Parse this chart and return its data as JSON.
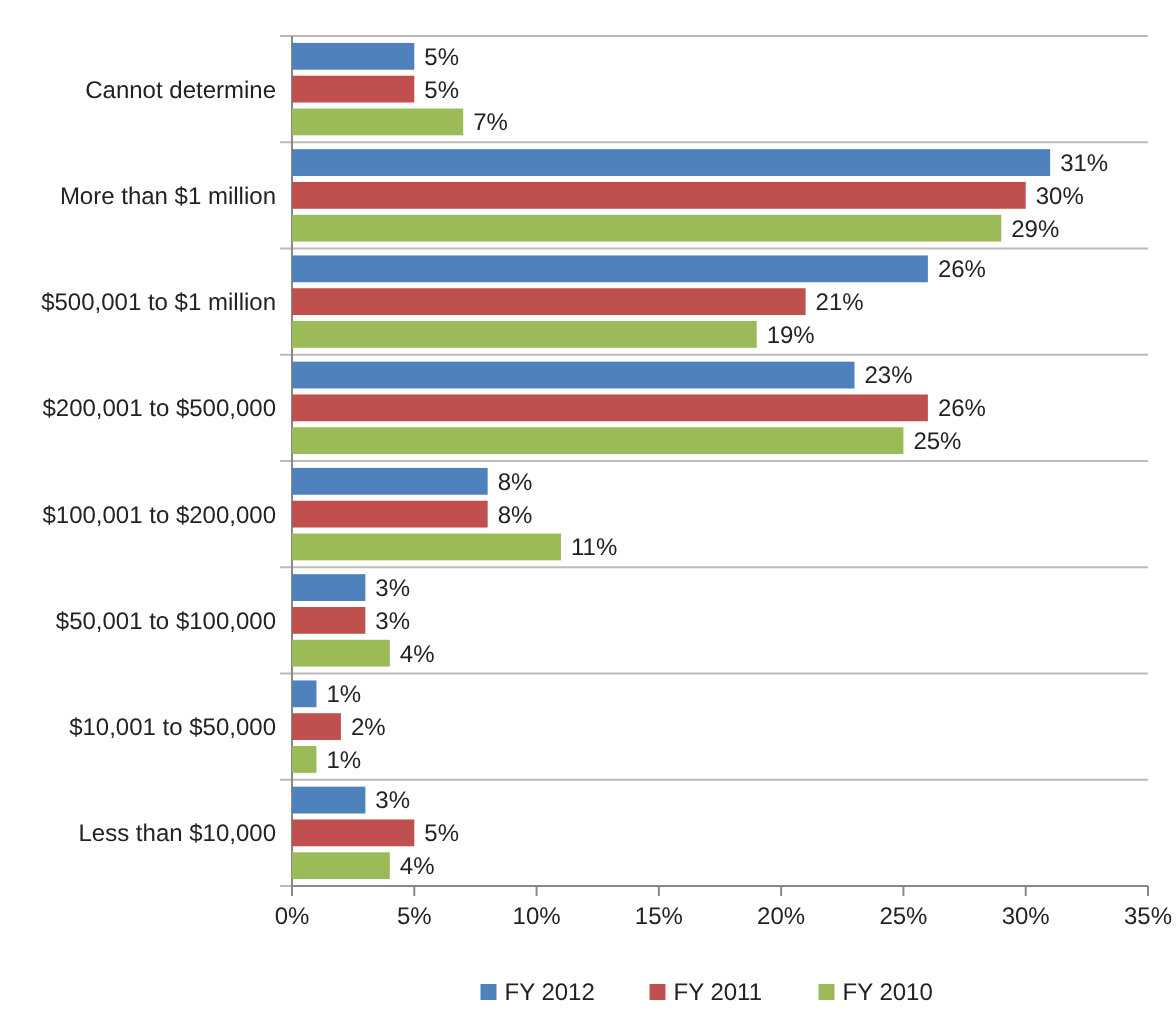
{
  "chart_data": {
    "type": "bar",
    "orientation": "horizontal",
    "categories": [
      "Cannot determine",
      "More than $1 million",
      "$500,001 to $1 million",
      "$200,001 to $500,000",
      "$100,001 to $200,000",
      "$50,001 to $100,000",
      "$10,001 to $50,000",
      "Less than $10,000"
    ],
    "series": [
      {
        "name": "FY 2012",
        "color": "#4f81bd",
        "values": [
          5,
          31,
          26,
          23,
          8,
          3,
          1,
          3
        ],
        "value_labels": [
          "5%",
          "31%",
          "26%",
          "23%",
          "8%",
          "3%",
          "1%",
          "3%"
        ]
      },
      {
        "name": "FY 2011",
        "color": "#c0504d",
        "values": [
          5,
          30,
          21,
          26,
          8,
          3,
          2,
          5
        ],
        "value_labels": [
          "5%",
          "30%",
          "21%",
          "26%",
          "8%",
          "3%",
          "2%",
          "5%"
        ]
      },
      {
        "name": "FY 2010",
        "color": "#9bbb59",
        "values": [
          7,
          29,
          19,
          25,
          11,
          4,
          1,
          4
        ],
        "value_labels": [
          "7%",
          "29%",
          "19%",
          "25%",
          "11%",
          "4%",
          "1%",
          "4%"
        ]
      }
    ],
    "xlim": [
      0,
      35
    ],
    "xticks": [
      {
        "value": 0,
        "label": "0%"
      },
      {
        "value": 5,
        "label": "5%"
      },
      {
        "value": 10,
        "label": "10%"
      },
      {
        "value": 15,
        "label": "15%"
      },
      {
        "value": 20,
        "label": "20%"
      },
      {
        "value": 25,
        "label": "25%"
      },
      {
        "value": 30,
        "label": "30%"
      },
      {
        "value": 35,
        "label": "35%"
      }
    ],
    "grid": "y",
    "legend": "bottom"
  }
}
